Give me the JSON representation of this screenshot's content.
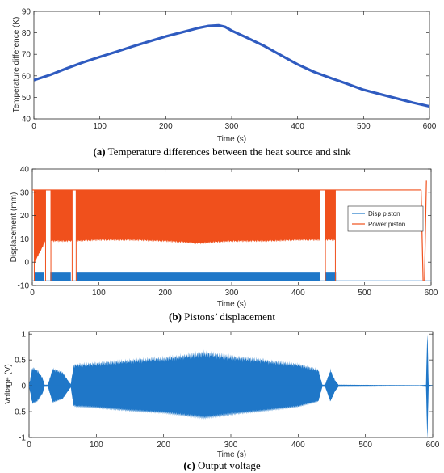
{
  "colors": {
    "temperature_line": "#2f5bc0",
    "disp_piston": "#1f77c8",
    "power_piston": "#f0501c",
    "voltage": "#1f77c8",
    "axis": "#262626"
  },
  "chart_data": [
    {
      "type": "line",
      "caption_letter": "(a)",
      "caption_text": " Temperature differences between the heat source and sink",
      "xlabel": "Time (s)",
      "ylabel": "Temperature difference (K)",
      "xlim": [
        0,
        600
      ],
      "ylim": [
        40,
        90
      ],
      "xticks": [
        0,
        100,
        200,
        300,
        400,
        500,
        600
      ],
      "yticks": [
        40,
        50,
        60,
        70,
        80,
        90
      ],
      "grid": false,
      "series": [
        {
          "x": [
            0,
            25,
            50,
            75,
            100,
            125,
            150,
            175,
            200,
            225,
            250,
            265,
            280,
            290,
            300,
            325,
            350,
            375,
            400,
            425,
            450,
            475,
            500,
            525,
            550,
            575,
            600
          ],
          "values": [
            58,
            60.5,
            63.5,
            66.3,
            68.8,
            71.2,
            73.7,
            76,
            78.3,
            80.3,
            82.3,
            83.2,
            83.5,
            82.8,
            81,
            77.5,
            73.8,
            69.5,
            65.3,
            61.8,
            59,
            56.3,
            53.5,
            51.5,
            49.5,
            47.5,
            45.8
          ]
        }
      ]
    },
    {
      "type": "line",
      "caption_letter": "(b)",
      "caption_text": " Pistons’ displacement",
      "xlabel": "Time (s)",
      "ylabel": "Displacement (mm)",
      "xlim": [
        0,
        600
      ],
      "ylim": [
        -10,
        40
      ],
      "xticks": [
        0,
        100,
        200,
        300,
        400,
        500,
        600
      ],
      "yticks": [
        -10,
        0,
        10,
        20,
        30,
        40
      ],
      "grid": false,
      "legend_position": "right",
      "series": [
        {
          "name": "Disp piston",
          "oscillating_intervals": [
            [
              3,
              18
            ],
            [
              27,
              58
            ],
            [
              66,
              433
            ],
            [
              440,
              457
            ]
          ],
          "band_top": -4.5,
          "band_bottom": -8,
          "rest_level": -8
        },
        {
          "name": "Power piston",
          "oscillating_intervals": [
            [
              3,
              20
            ],
            [
              28,
              60
            ],
            [
              66,
              433
            ],
            [
              441,
              456
            ]
          ],
          "band_top": 31,
          "envelope_x": [
            0,
            20,
            60,
            100,
            150,
            200,
            230,
            250,
            270,
            300,
            350,
            400,
            455
          ],
          "envelope_low": [
            -2,
            9,
            9,
            9.5,
            9.5,
            9,
            8.5,
            8,
            8.5,
            9,
            9,
            9.5,
            9.5
          ],
          "rest_level": 31,
          "final_drop_x": [
            585,
            588,
            590,
            593
          ],
          "final_drop_y": [
            31,
            -8,
            -8,
            35
          ]
        }
      ]
    },
    {
      "type": "line",
      "caption_letter": "(c)",
      "caption_text": " Output voltage",
      "xlabel": "Time (s)",
      "ylabel": "Voltage (V)",
      "xlim": [
        0,
        600
      ],
      "ylim": [
        -1,
        1.05
      ],
      "xticks": [
        0,
        100,
        200,
        300,
        400,
        500,
        600
      ],
      "yticks": [
        -1,
        -0.5,
        0,
        0.5,
        1
      ],
      "grid": false,
      "series": [
        {
          "envelope_x": [
            0,
            5,
            12,
            20,
            23,
            28,
            35,
            50,
            58,
            62,
            66,
            70,
            100,
            150,
            200,
            250,
            260,
            300,
            350,
            400,
            430,
            436,
            440,
            448,
            455,
            460,
            580,
            590,
            592,
            594,
            600
          ],
          "envelope_amp": [
            0.02,
            0.34,
            0.3,
            0.15,
            0.02,
            0.02,
            0.32,
            0.25,
            0.1,
            0.03,
            0.38,
            0.4,
            0.42,
            0.48,
            0.52,
            0.6,
            0.62,
            0.55,
            0.48,
            0.4,
            0.3,
            0.02,
            0.02,
            0.3,
            0.1,
            0.02,
            0.01,
            0.02,
            1.05,
            0.02,
            0.01
          ]
        }
      ]
    }
  ]
}
